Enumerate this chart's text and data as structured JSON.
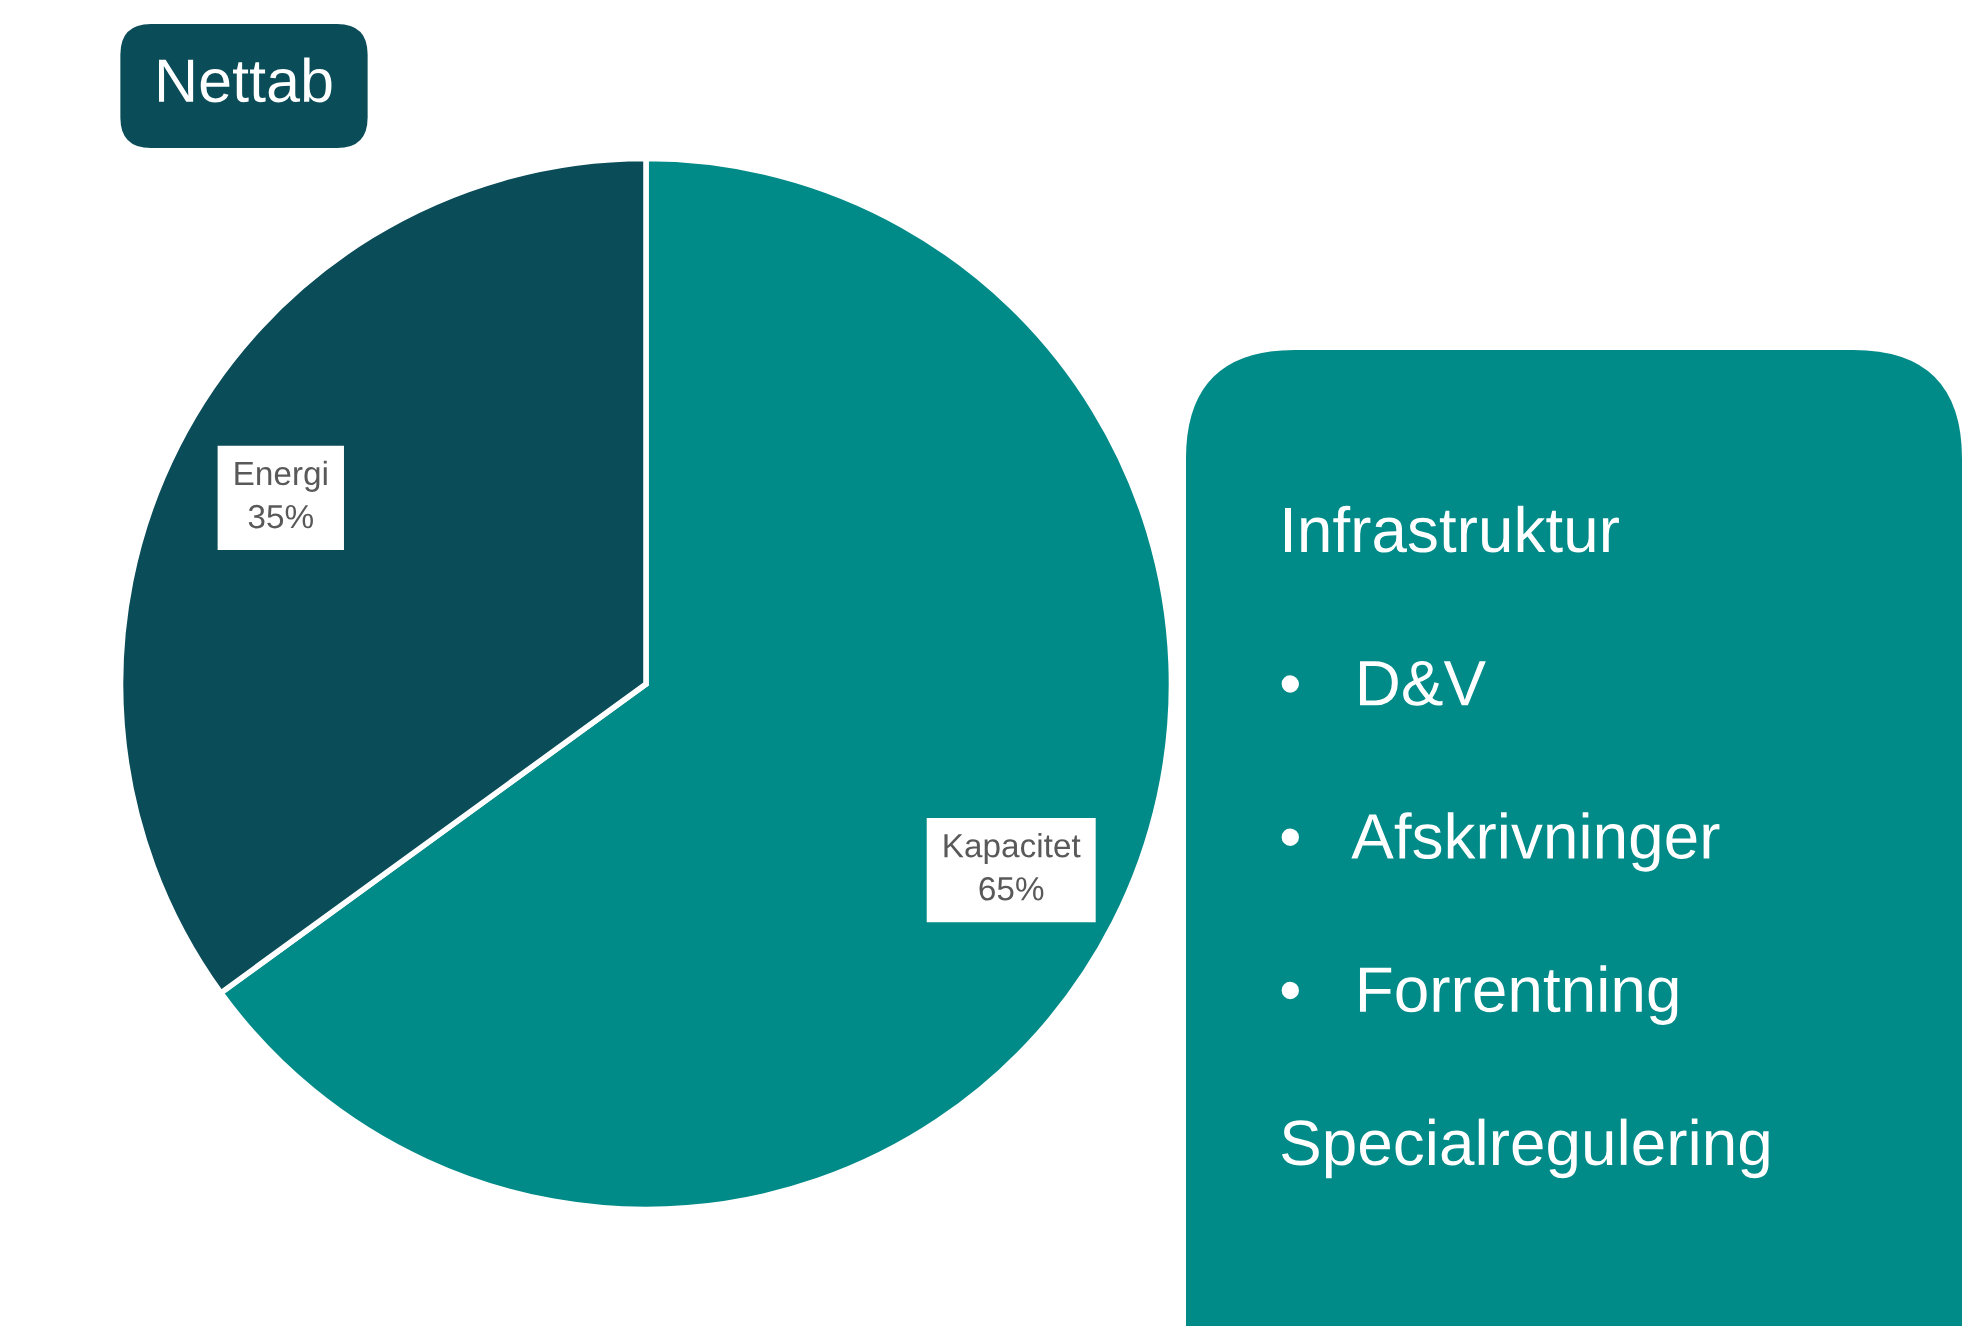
{
  "chart_data": [
    {
      "type": "pie",
      "title": "Nettab",
      "categories": [
        "Kapacitet",
        "Energi"
      ],
      "values": [
        65,
        35
      ],
      "colors": [
        "#008b88",
        "#0b4c59"
      ],
      "value_labels": [
        "65%",
        "35%"
      ]
    },
    {
      "type": "other",
      "annotations": [
        "Infrastruktur",
        "•   D&V",
        "•   Afskrivninger",
        "•   Forrentning",
        "Specialregulering"
      ]
    }
  ]
}
